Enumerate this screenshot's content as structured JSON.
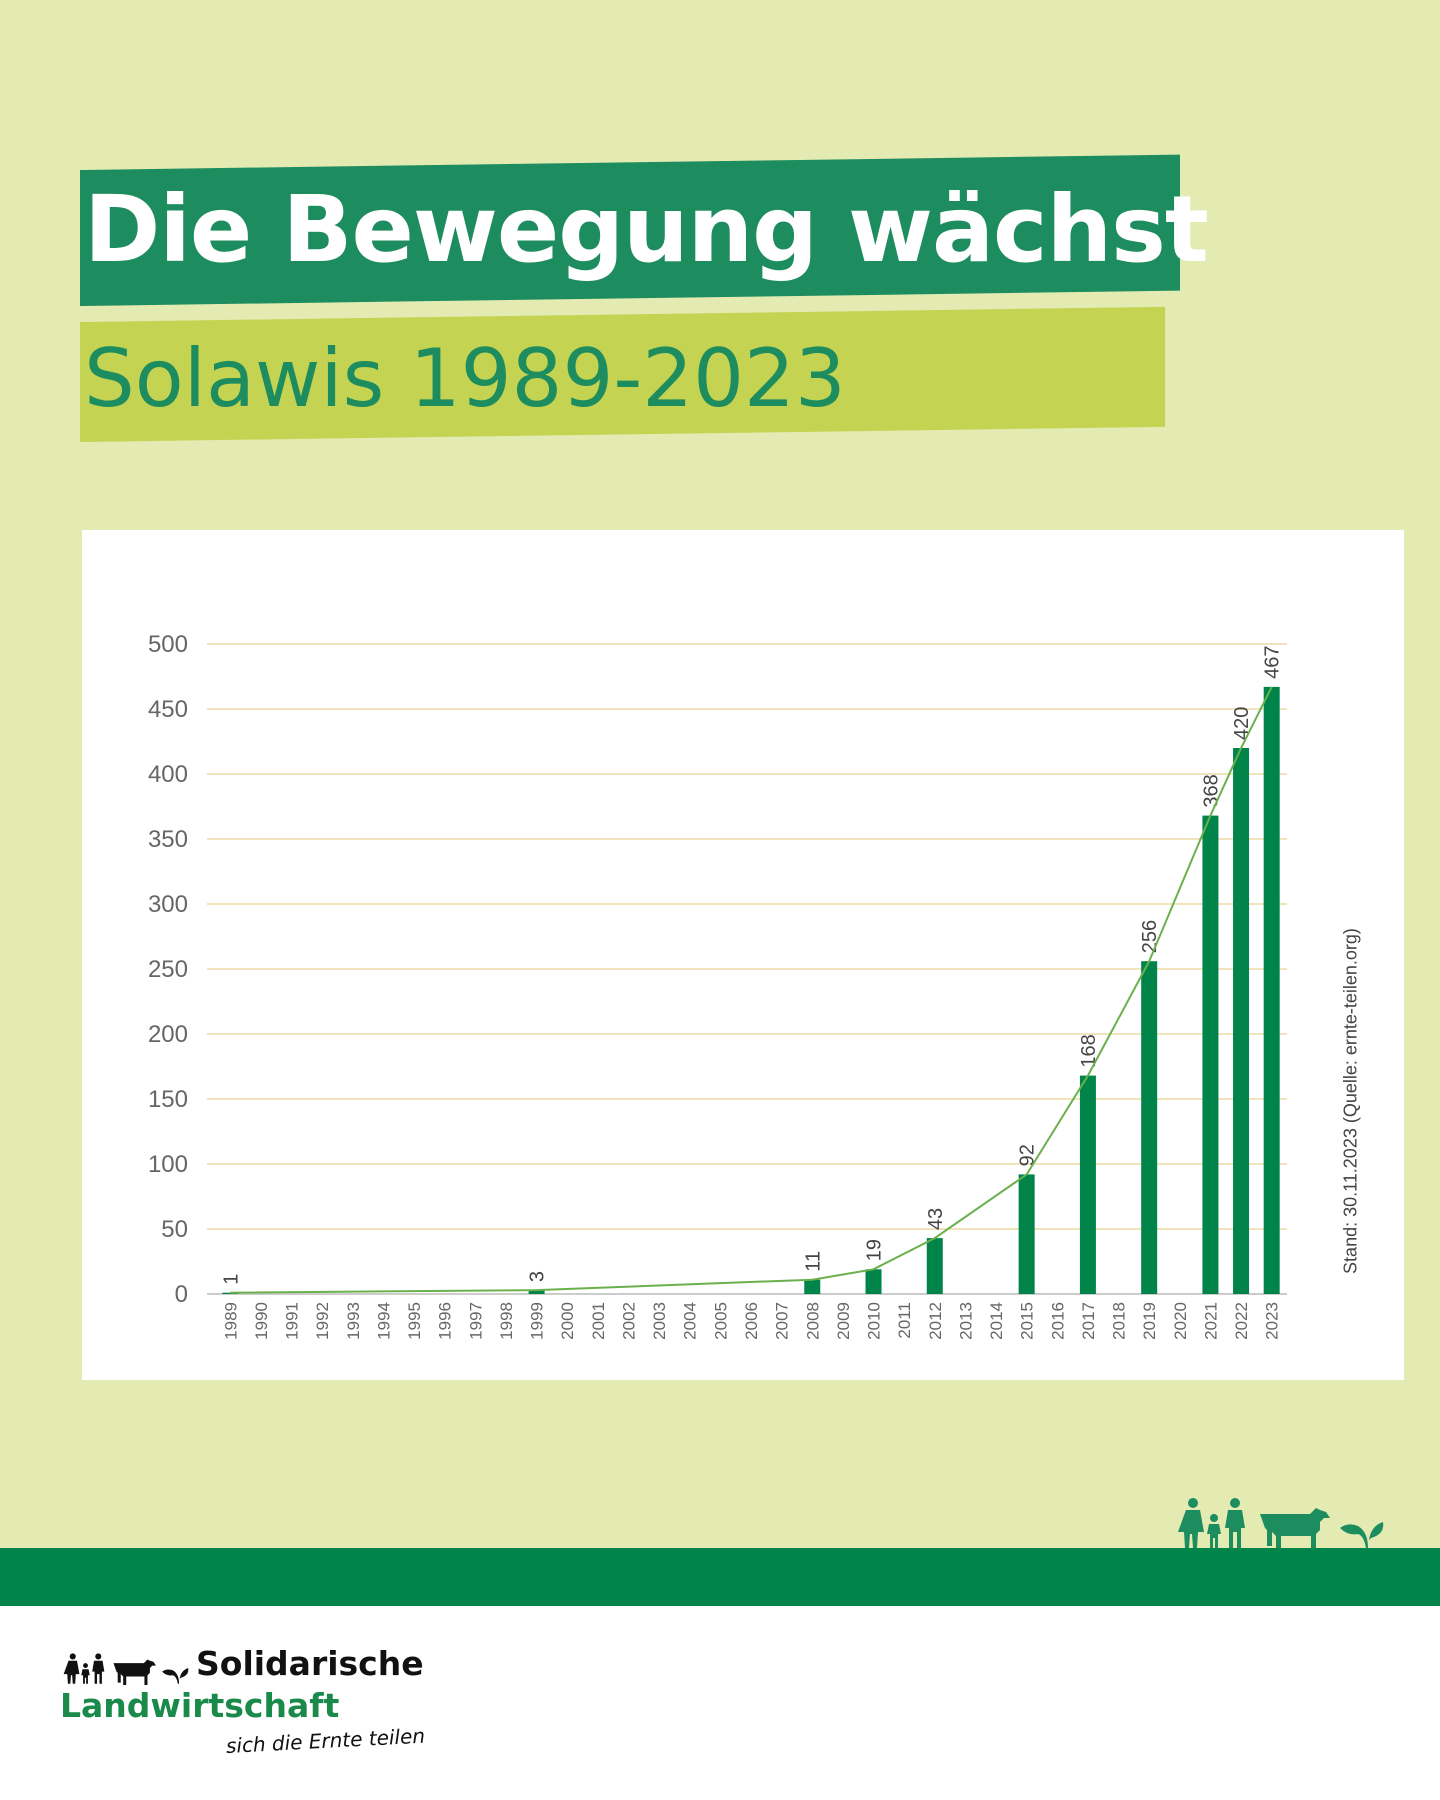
{
  "header": {
    "title": "Die Bewegung wächst",
    "subtitle": "Solawis 1989-2023"
  },
  "note": "Stand: 30.11.2023 (Quelle: ernte-teilen.org)",
  "footer": {
    "logo_line1": "Solidarische",
    "logo_line2": "Landwirtschaft",
    "tagline": "sich die Ernte teilen"
  },
  "colors": {
    "background": "#e3ebb3",
    "title_bg": "#1d8c5f",
    "subtitle_bg": "#c4d452",
    "bar": "#00844a",
    "line": "#6ab04c",
    "band": "#00844a"
  },
  "icons": [
    "person-icon",
    "child-icon",
    "cow-icon",
    "plant-icon"
  ],
  "chart_data": {
    "type": "bar",
    "categories": [
      "1989",
      "1990",
      "1991",
      "1992",
      "1993",
      "1994",
      "1995",
      "1996",
      "1997",
      "1998",
      "1999",
      "2000",
      "2001",
      "2002",
      "2003",
      "2004",
      "2005",
      "2006",
      "2007",
      "2008",
      "2009",
      "2010",
      "2011",
      "2012",
      "2013",
      "2014",
      "2015",
      "2016",
      "2017",
      "2018",
      "2019",
      "2020",
      "2021",
      "2022",
      "2023"
    ],
    "values": [
      1,
      null,
      null,
      null,
      null,
      null,
      null,
      null,
      null,
      null,
      3,
      null,
      null,
      null,
      null,
      null,
      null,
      null,
      null,
      11,
      null,
      19,
      null,
      43,
      null,
      null,
      92,
      null,
      168,
      null,
      256,
      null,
      368,
      420,
      467
    ],
    "ylim": [
      0,
      500
    ],
    "yticks": [
      0,
      50,
      100,
      150,
      200,
      250,
      300,
      350,
      400,
      450,
      500
    ],
    "grid": true,
    "trendline": true
  }
}
